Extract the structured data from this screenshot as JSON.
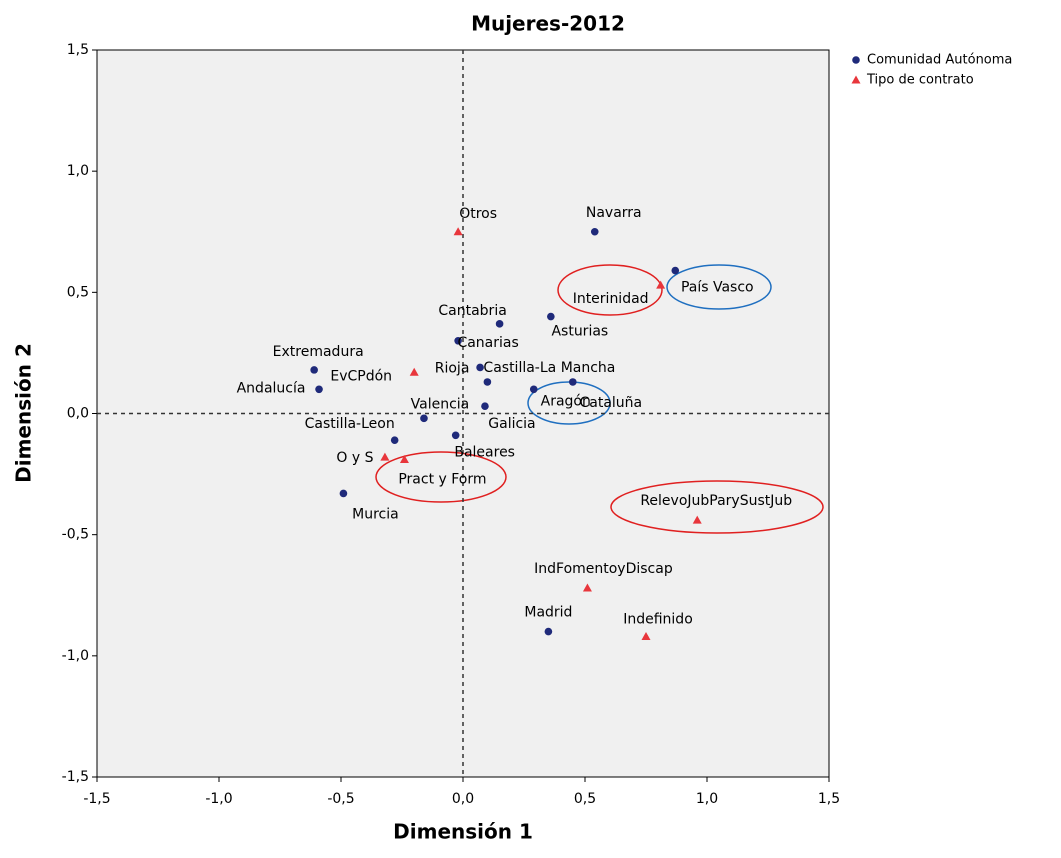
{
  "chart_data": {
    "type": "scatter",
    "title": "Mujeres-2012",
    "xlabel": "Dimensión 1",
    "ylabel": "Dimensión 2",
    "xlim": [
      -1.5,
      1.5
    ],
    "ylim": [
      -1.5,
      1.5
    ],
    "xticks": [
      {
        "value": -1.5,
        "label": "-1,5"
      },
      {
        "value": -1.0,
        "label": "-1,0"
      },
      {
        "value": -0.5,
        "label": "-0,5"
      },
      {
        "value": 0,
        "label": "0,0"
      },
      {
        "value": 0.5,
        "label": "0,5"
      },
      {
        "value": 1.0,
        "label": "1,0"
      },
      {
        "value": 1.5,
        "label": "1,5"
      }
    ],
    "yticks": [
      {
        "value": -1.5,
        "label": "-1,5"
      },
      {
        "value": -1.0,
        "label": "-1,0"
      },
      {
        "value": -0.5,
        "label": "-0,5"
      },
      {
        "value": 0,
        "label": "0,0"
      },
      {
        "value": 0.5,
        "label": "0,5"
      },
      {
        "value": 1.0,
        "label": "1,0"
      },
      {
        "value": 1.5,
        "label": "1,5"
      }
    ],
    "legend": "top-right",
    "series": [
      {
        "name": "Comunidad Autónoma",
        "color": "#1f2a7a",
        "marker": "circle",
        "labels": [
          "Navarra",
          "País Vasco",
          "Cantabria",
          "Asturias",
          "Canarias",
          "Rioja",
          "Castilla-La Mancha",
          "Cataluña",
          "Aragón",
          "Extremadura",
          "Andalucía",
          "Valencia",
          "Galicia",
          "Castilla-Leon",
          "Baleares",
          "Murcia",
          "Madrid"
        ],
        "x": [
          0.54,
          0.87,
          0.15,
          0.36,
          -0.02,
          0.07,
          0.1,
          0.45,
          0.29,
          -0.61,
          -0.59,
          -0.16,
          0.09,
          -0.28,
          -0.03,
          -0.49,
          0.35
        ],
        "values": [
          0.75,
          0.59,
          0.37,
          0.4,
          0.3,
          0.19,
          0.13,
          0.13,
          0.1,
          0.18,
          0.1,
          -0.02,
          0.03,
          -0.11,
          -0.09,
          -0.33,
          -0.9
        ]
      },
      {
        "name": "Tipo de contrato",
        "color": "#e8363c",
        "marker": "triangle",
        "labels": [
          "Otros",
          "Interinidad",
          "EvCPdón",
          "O y S",
          "Pract y Form",
          "RelevoJubParySustJub",
          "IndFomentoyDiscap",
          "Indefinido"
        ],
        "x": [
          -0.02,
          0.81,
          -0.2,
          -0.32,
          -0.24,
          0.96,
          0.51,
          0.75
        ],
        "values": [
          0.75,
          0.53,
          0.17,
          -0.18,
          -0.19,
          -0.44,
          -0.72,
          -0.92
        ]
      }
    ]
  }
}
